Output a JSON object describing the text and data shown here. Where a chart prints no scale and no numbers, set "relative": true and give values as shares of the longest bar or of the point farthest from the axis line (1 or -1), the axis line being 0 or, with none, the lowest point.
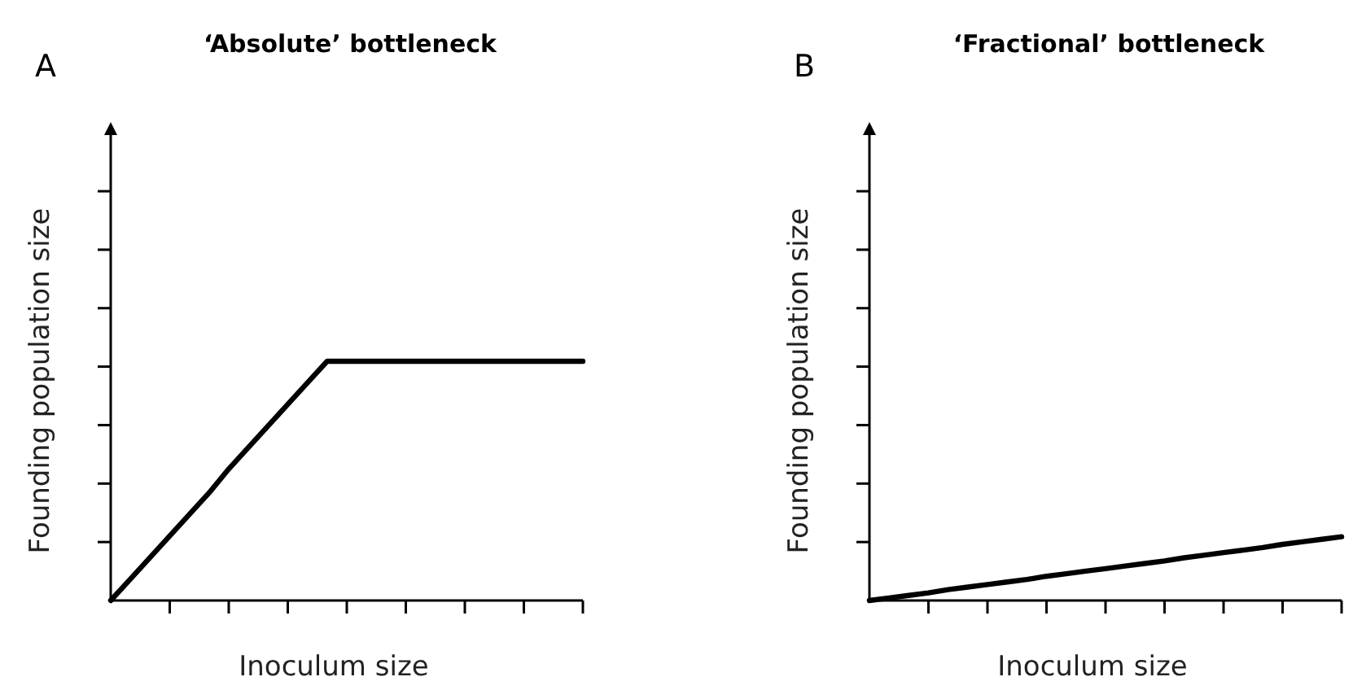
{
  "chart_data": [
    {
      "type": "line",
      "title": "‘Absolute’ bottleneck",
      "annotations": [
        "A"
      ],
      "xlabel": "Inoculum size",
      "ylabel": "Founding population size",
      "relative": true,
      "categories": [
        null,
        null,
        null,
        null,
        null,
        null,
        null,
        null,
        null,
        null,
        null,
        null,
        null,
        null,
        null,
        null,
        null,
        null,
        null,
        null,
        null,
        null,
        null,
        null,
        null
      ],
      "series": [
        {
          "color": "#000000",
          "values": [
            0,
            0.09,
            0.18,
            0.27,
            0.36,
            0.45,
            0.55,
            0.64,
            0.73,
            0.82,
            0.91,
            1,
            1,
            1,
            1,
            1,
            1,
            1,
            1,
            1,
            1,
            1,
            1,
            1,
            1
          ]
        }
      ]
    },
    {
      "type": "line",
      "title": "‘Fractional’ bottleneck",
      "annotations": [
        "B"
      ],
      "xlabel": "Inoculum size",
      "ylabel": "Founding population size",
      "relative": true,
      "categories": [
        null,
        null,
        null,
        null,
        null,
        null,
        null,
        null,
        null,
        null,
        null,
        null,
        null,
        null,
        null,
        null,
        null,
        null,
        null,
        null,
        null,
        null,
        null,
        null,
        null
      ],
      "series": [
        {
          "color": "#000000",
          "values": [
            0,
            0.04,
            0.08,
            0.12,
            0.17,
            0.21,
            0.25,
            0.29,
            0.33,
            0.38,
            0.42,
            0.46,
            0.5,
            0.54,
            0.58,
            0.62,
            0.67,
            0.71,
            0.75,
            0.79,
            0.83,
            0.88,
            0.92,
            0.96,
            1
          ]
        }
      ]
    }
  ]
}
